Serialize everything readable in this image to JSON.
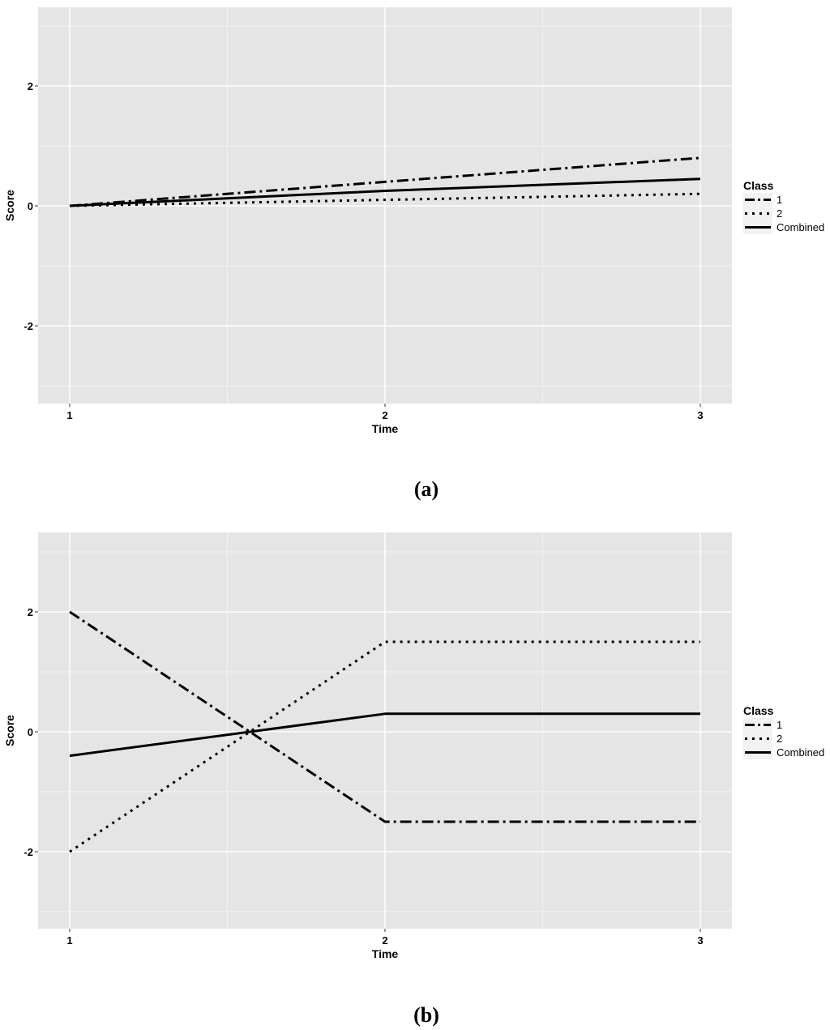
{
  "chart_data": [
    {
      "type": "line",
      "caption": "(a)",
      "xlabel": "Time",
      "ylabel": "Score",
      "x": [
        1,
        2,
        3
      ],
      "xticks": [
        "1",
        "2",
        "3"
      ],
      "yticks": [
        "-2",
        "0",
        "2"
      ],
      "ylim": [
        -3.3,
        3.3
      ],
      "grid": true,
      "legend_title": "Class",
      "legend_position": "right",
      "series": [
        {
          "name": "1",
          "values": [
            0,
            0.4,
            0.8
          ],
          "dash": "dashdot"
        },
        {
          "name": "2",
          "values": [
            0,
            0.1,
            0.2
          ],
          "dash": "dotted"
        },
        {
          "name": "Combined",
          "values": [
            0,
            0.25,
            0.45
          ],
          "dash": "solid"
        }
      ]
    },
    {
      "type": "line",
      "caption": "(b)",
      "xlabel": "Time",
      "ylabel": "Score",
      "x": [
        1,
        2,
        3
      ],
      "xticks": [
        "1",
        "2",
        "3"
      ],
      "yticks": [
        "-2",
        "0",
        "2"
      ],
      "ylim": [
        -3.3,
        3.3
      ],
      "grid": true,
      "legend_title": "Class",
      "legend_position": "right",
      "series": [
        {
          "name": "1",
          "values": [
            2,
            -1.5,
            -1.5
          ],
          "dash": "dashdot"
        },
        {
          "name": "2",
          "values": [
            -2,
            1.5,
            1.5
          ],
          "dash": "dotted"
        },
        {
          "name": "Combined",
          "values": [
            -0.4,
            0.3,
            0.3
          ],
          "dash": "solid"
        }
      ]
    }
  ],
  "colors": {
    "panel": "#e5e5e5",
    "grid_major": "#ffffff",
    "grid_minor": "#f2f2f2",
    "line": "#000000",
    "legend_key": "#f2f2f2"
  }
}
